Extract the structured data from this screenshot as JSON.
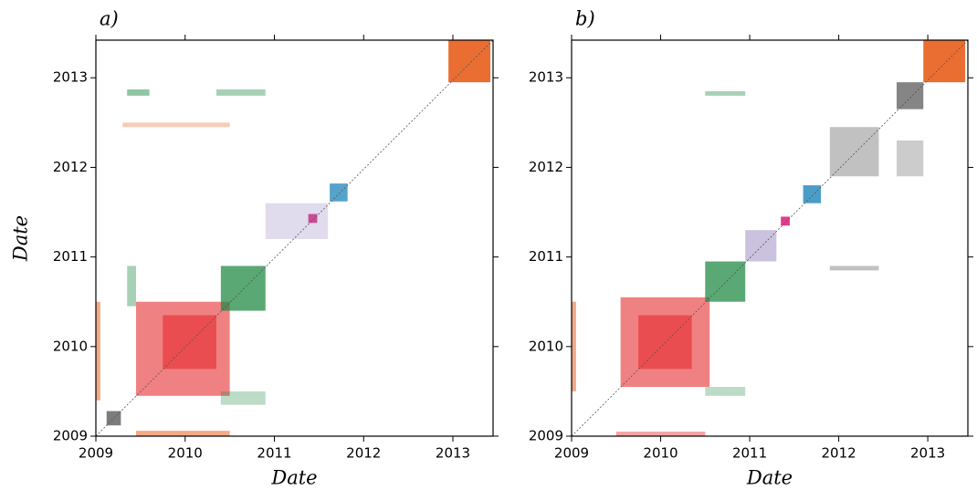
{
  "chart_data": [
    {
      "type": "heatmap",
      "title": "a)",
      "xlabel": "Date",
      "ylabel": "Date",
      "xlim": [
        2009,
        2013.45
      ],
      "ylim": [
        2009,
        2013.42
      ],
      "xticks": [
        2009,
        2010,
        2011,
        2012,
        2013
      ],
      "yticks": [
        2009,
        2010,
        2011,
        2012,
        2013
      ],
      "regions": [
        {
          "x": [
            2009.45,
            2010.5
          ],
          "y": [
            2009.45,
            2010.5
          ],
          "color": "#e31a1c",
          "opacity": 0.55
        },
        {
          "x": [
            2009.75,
            2010.35
          ],
          "y": [
            2009.75,
            2010.35
          ],
          "color": "#e31a1c",
          "opacity": 0.5
        },
        {
          "x": [
            2010.4,
            2010.9
          ],
          "y": [
            2010.4,
            2010.9
          ],
          "color": "#238b45",
          "opacity": 0.75
        },
        {
          "x": [
            2012.95,
            2013.42
          ],
          "y": [
            2012.95,
            2013.42
          ],
          "color": "#e6550d",
          "opacity": 0.85
        },
        {
          "x": [
            2011.62,
            2011.82
          ],
          "y": [
            2011.62,
            2011.82
          ],
          "color": "#2b8cbe",
          "opacity": 0.8
        },
        {
          "x": [
            2011.38,
            2011.48
          ],
          "y": [
            2011.38,
            2011.48
          ],
          "color": "#dd1c77",
          "opacity": 0.8
        },
        {
          "x": [
            2009.12,
            2009.28
          ],
          "y": [
            2009.12,
            2009.28
          ],
          "color": "#444444",
          "opacity": 0.7
        },
        {
          "x": [
            2010.9,
            2011.6
          ],
          "y": [
            2011.2,
            2011.6
          ],
          "color": "#6a51a3",
          "opacity": 0.2
        },
        {
          "x": [
            2009.0,
            2009.05
          ],
          "y": [
            2009.4,
            2010.5
          ],
          "color": "#e6550d",
          "opacity": 0.5
        },
        {
          "x": [
            2009.45,
            2010.5
          ],
          "y": [
            2009.0,
            2009.06
          ],
          "color": "#e6550d",
          "opacity": 0.5
        },
        {
          "x": [
            2009.35,
            2009.45
          ],
          "y": [
            2010.45,
            2010.9
          ],
          "color": "#238b45",
          "opacity": 0.4
        },
        {
          "x": [
            2010.4,
            2010.9
          ],
          "y": [
            2009.35,
            2009.5
          ],
          "color": "#238b45",
          "opacity": 0.3
        },
        {
          "x": [
            2009.35,
            2009.6
          ],
          "y": [
            2012.8,
            2012.87
          ],
          "color": "#238b45",
          "opacity": 0.5
        },
        {
          "x": [
            2010.35,
            2010.9
          ],
          "y": [
            2012.8,
            2012.87
          ],
          "color": "#238b45",
          "opacity": 0.4
        },
        {
          "x": [
            2009.3,
            2010.5
          ],
          "y": [
            2012.45,
            2012.5
          ],
          "color": "#e6550d",
          "opacity": 0.3
        }
      ]
    },
    {
      "type": "heatmap",
      "title": "b)",
      "xlabel": "Date",
      "xlim": [
        2009,
        2013.45
      ],
      "ylim": [
        2009,
        2013.42
      ],
      "xticks": [
        2009,
        2010,
        2011,
        2012,
        2013
      ],
      "yticks": [
        2009,
        2010,
        2011,
        2012,
        2013
      ],
      "regions": [
        {
          "x": [
            2009.55,
            2010.55
          ],
          "y": [
            2009.55,
            2010.55
          ],
          "color": "#e31a1c",
          "opacity": 0.55
        },
        {
          "x": [
            2009.75,
            2010.35
          ],
          "y": [
            2009.75,
            2010.35
          ],
          "color": "#e31a1c",
          "opacity": 0.5
        },
        {
          "x": [
            2010.5,
            2010.95
          ],
          "y": [
            2010.5,
            2010.95
          ],
          "color": "#238b45",
          "opacity": 0.75
        },
        {
          "x": [
            2012.95,
            2013.42
          ],
          "y": [
            2012.95,
            2013.42
          ],
          "color": "#e6550d",
          "opacity": 0.85
        },
        {
          "x": [
            2012.65,
            2012.95
          ],
          "y": [
            2012.65,
            2012.95
          ],
          "color": "#333333",
          "opacity": 0.6
        },
        {
          "x": [
            2011.9,
            2012.45
          ],
          "y": [
            2011.9,
            2012.45
          ],
          "color": "#333333",
          "opacity": 0.3
        },
        {
          "x": [
            2011.6,
            2011.8
          ],
          "y": [
            2011.6,
            2011.8
          ],
          "color": "#2b8cbe",
          "opacity": 0.85
        },
        {
          "x": [
            2011.35,
            2011.45
          ],
          "y": [
            2011.35,
            2011.45
          ],
          "color": "#dd1c77",
          "opacity": 0.85
        },
        {
          "x": [
            2010.95,
            2011.3
          ],
          "y": [
            2010.95,
            2011.3
          ],
          "color": "#6a51a3",
          "opacity": 0.35
        },
        {
          "x": [
            2009.0,
            2009.05
          ],
          "y": [
            2009.5,
            2010.5
          ],
          "color": "#e6550d",
          "opacity": 0.5
        },
        {
          "x": [
            2009.5,
            2010.5
          ],
          "y": [
            2009.0,
            2009.05
          ],
          "color": "#e31a1c",
          "opacity": 0.4
        },
        {
          "x": [
            2010.5,
            2010.95
          ],
          "y": [
            2009.45,
            2009.55
          ],
          "color": "#238b45",
          "opacity": 0.3
        },
        {
          "x": [
            2011.9,
            2012.45
          ],
          "y": [
            2010.85,
            2010.9
          ],
          "color": "#333333",
          "opacity": 0.3
        },
        {
          "x": [
            2012.65,
            2012.95
          ],
          "y": [
            2011.9,
            2012.3
          ],
          "color": "#333333",
          "opacity": 0.25
        },
        {
          "x": [
            2010.5,
            2010.95
          ],
          "y": [
            2012.8,
            2012.85
          ],
          "color": "#238b45",
          "opacity": 0.4
        }
      ]
    }
  ]
}
